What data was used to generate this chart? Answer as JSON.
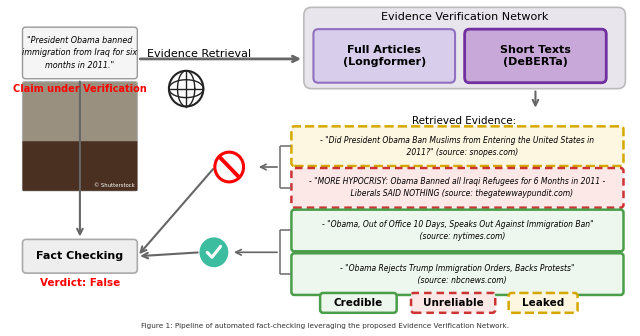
{
  "title": "Figure 1: Pipeline of automated fact-checking leveraging the proposed Evidence Verification Network.",
  "claim_text": "\"President Obama banned\nimmigration from Iraq for six\nmonths in 2011.\"",
  "claim_label": "Claim under Verification",
  "verdict_text": "Verdict: False",
  "fact_checking_label": "Fact Checking",
  "evidence_retrieval_label": "Evidence Retrieval",
  "evn_label": "Evidence Verification Network",
  "retrieved_evidence_label": "Retrieved Evidence:",
  "full_articles_label": "Full Articles\n(Longformer)",
  "short_texts_label": "Short Texts\n(DeBERTa)",
  "evidence_items": [
    "- \"Did President Obama Ban Muslims from Entering the United States in\n    2011?\" (source: snopes.com)",
    "- \"MORE HYPOCRISY: Obama Banned all Iraqi Refugees for 6 Months in 2011 -\n    Liberals SAID NOTHING (source: thegatewwaypundit.com)",
    "- \"Obama, Out of Office 10 Days, Speaks Out Against Immigration Ban\"\n    (source: nytimes.com)",
    "- \"Obama Rejects Trump Immigration Orders, Backs Protests\"\n    (source: nbcnews.com)"
  ],
  "legend_credible": "Credible",
  "legend_unreliable": "Unreliable",
  "legend_leaked": "Leaked",
  "bg_color": "#ffffff",
  "evn_box_color": "#e8e6ec",
  "full_articles_box_color": "#d8ceec",
  "short_texts_box_color": "#c8a8d8",
  "claim_box_color": "#f5f5f5",
  "fact_checking_box_color": "#eeeeee",
  "evidence1_bg": "#fdf6e0",
  "evidence1_border": "#d4a800",
  "evidence2_bg": "#fde8e8",
  "evidence2_border": "#cc3333",
  "evidence3_bg": "#edf7ed",
  "evidence3_border": "#4a9e4a",
  "evidence4_bg": "#edf7ed",
  "evidence4_border": "#4a9e4a",
  "credible_bg": "#edf7ed",
  "credible_border": "#4a9e4a",
  "unreliable_bg": "#fde8e8",
  "unreliable_border": "#cc3333",
  "leaked_bg": "#fdf6e0",
  "leaked_border": "#d4a800",
  "arrow_color": "#666666",
  "line_color": "#777777"
}
